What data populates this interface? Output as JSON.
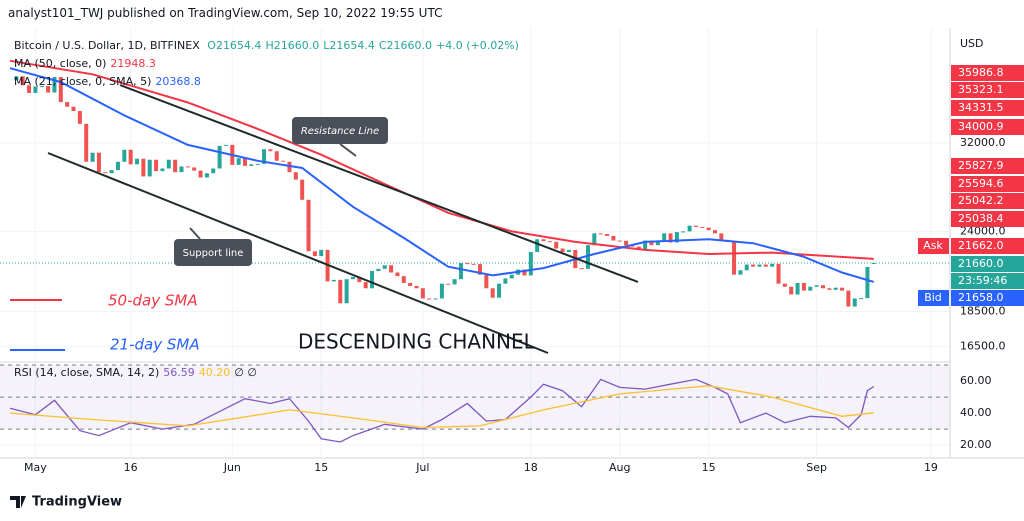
{
  "header": {
    "publisher": "analyst101_TWJ published on TradingView.com, Sep 10, 2022 19:55 UTC",
    "footer": "TradingView"
  },
  "chart_data": [
    {
      "type": "candlestick",
      "title": "Bitcoin / U.S. Dollar, 1D, BITFINEX",
      "quote": [
        "O21654.4",
        "H21660.0",
        "L21654.4",
        "C21660.0",
        "+4.0 (+0.02%)"
      ],
      "currency": "USD",
      "x": [
        "2022-04-28",
        "2022-04-29",
        "2022-04-30",
        "2022-05-01",
        "2022-05-02",
        "2022-05-03",
        "2022-05-04",
        "2022-05-05",
        "2022-05-06",
        "2022-05-07",
        "2022-05-08",
        "2022-05-09",
        "2022-05-10",
        "2022-05-11",
        "2022-05-12",
        "2022-05-13",
        "2022-05-14",
        "2022-05-15",
        "2022-05-16",
        "2022-05-17",
        "2022-05-18",
        "2022-05-19",
        "2022-05-20",
        "2022-05-21",
        "2022-05-22",
        "2022-05-23",
        "2022-05-24",
        "2022-05-25",
        "2022-05-26",
        "2022-05-27",
        "2022-05-28",
        "2022-05-29",
        "2022-05-30",
        "2022-05-31",
        "2022-06-01",
        "2022-06-02",
        "2022-06-03",
        "2022-06-04",
        "2022-06-05",
        "2022-06-06",
        "2022-06-07",
        "2022-06-08",
        "2022-06-09",
        "2022-06-10",
        "2022-06-11",
        "2022-06-12",
        "2022-06-13",
        "2022-06-14",
        "2022-06-15",
        "2022-06-16",
        "2022-06-17",
        "2022-06-18",
        "2022-06-19",
        "2022-06-20",
        "2022-06-21",
        "2022-06-22",
        "2022-06-23",
        "2022-06-24",
        "2022-06-25",
        "2022-06-26",
        "2022-06-27",
        "2022-06-28",
        "2022-06-29",
        "2022-06-30",
        "2022-07-01",
        "2022-07-02",
        "2022-07-03",
        "2022-07-04",
        "2022-07-05",
        "2022-07-06",
        "2022-07-07",
        "2022-07-08",
        "2022-07-09",
        "2022-07-10",
        "2022-07-11",
        "2022-07-12",
        "2022-07-13",
        "2022-07-14",
        "2022-07-15",
        "2022-07-16",
        "2022-07-17",
        "2022-07-18",
        "2022-07-19",
        "2022-07-20",
        "2022-07-21",
        "2022-07-22",
        "2022-07-23",
        "2022-07-24",
        "2022-07-25",
        "2022-07-26",
        "2022-07-27",
        "2022-07-28",
        "2022-07-29",
        "2022-07-30",
        "2022-07-31",
        "2022-08-01",
        "2022-08-02",
        "2022-08-03",
        "2022-08-04",
        "2022-08-05",
        "2022-08-06",
        "2022-08-07",
        "2022-08-08",
        "2022-08-09",
        "2022-08-10",
        "2022-08-11",
        "2022-08-12",
        "2022-08-13",
        "2022-08-14",
        "2022-08-15",
        "2022-08-16",
        "2022-08-17",
        "2022-08-18",
        "2022-08-19",
        "2022-08-20",
        "2022-08-21",
        "2022-08-22",
        "2022-08-23",
        "2022-08-24",
        "2022-08-25",
        "2022-08-26",
        "2022-08-27",
        "2022-08-28",
        "2022-08-29",
        "2022-08-30",
        "2022-08-31",
        "2022-09-01",
        "2022-09-02",
        "2022-09-03",
        "2022-09-04",
        "2022-09-05",
        "2022-09-06",
        "2022-09-07",
        "2022-09-08",
        "2022-09-09",
        "2022-09-10"
      ],
      "open": [
        39250,
        39750,
        38600,
        37650,
        38450,
        38500,
        37700,
        39650,
        36550,
        36000,
        35500,
        34050,
        30100,
        31000,
        29100,
        29000,
        29300,
        30100,
        31300,
        29850,
        30400,
        28700,
        30300,
        29200,
        29450,
        30300,
        29100,
        29650,
        29550,
        29250,
        28600,
        29000,
        29450,
        31700,
        31800,
        29800,
        30450,
        29700,
        29850,
        29900,
        31350,
        31150,
        30200,
        30100,
        29100,
        28400,
        26600,
        22500,
        22150,
        22600,
        20400,
        20500,
        19000,
        20550,
        20700,
        20350,
        19950,
        21100,
        21250,
        21500,
        21000,
        20750,
        20300,
        20100,
        19950,
        19300,
        19250,
        19300,
        20250,
        20200,
        20550,
        21650,
        21600,
        21580,
        20850,
        19950,
        19350,
        20250,
        20600,
        20850,
        21200,
        20800,
        22450,
        23400,
        23250,
        23200,
        22700,
        22450,
        22600,
        21300,
        21250,
        22950,
        23850,
        23800,
        23650,
        23300,
        23280,
        22950,
        22850,
        22650,
        23300,
        22950,
        23200,
        23850,
        23150,
        23950,
        24000,
        24450,
        24350,
        24300,
        24100,
        23850,
        23350,
        23200,
        20850,
        21150,
        21550,
        21400,
        21550,
        21400,
        21600,
        20250,
        20050,
        19550,
        20300,
        19800,
        20050,
        20150,
        19950,
        19850,
        19990,
        19800,
        18800,
        19300,
        19320,
        21654.4
      ],
      "close": [
        39750,
        38600,
        37650,
        38450,
        38500,
        37700,
        39650,
        36550,
        36000,
        35500,
        34050,
        30100,
        31000,
        29100,
        29000,
        29300,
        30100,
        31300,
        29850,
        30400,
        28700,
        30300,
        29200,
        29450,
        30300,
        29100,
        29650,
        29550,
        29250,
        28600,
        29000,
        29450,
        31700,
        31800,
        29800,
        30450,
        29700,
        29850,
        29900,
        31350,
        31150,
        30200,
        30100,
        29100,
        28400,
        26600,
        22500,
        22150,
        22600,
        20400,
        20500,
        19000,
        20550,
        20700,
        20350,
        19950,
        21100,
        21250,
        21500,
        21000,
        20750,
        20300,
        20100,
        19950,
        19300,
        19250,
        19300,
        20250,
        20200,
        20550,
        21650,
        21600,
        21580,
        20850,
        19950,
        19350,
        20250,
        20600,
        20850,
        21200,
        20800,
        22450,
        23400,
        23250,
        23200,
        22700,
        22450,
        22600,
        21300,
        21250,
        22950,
        23850,
        23800,
        23650,
        23300,
        23280,
        22950,
        22850,
        22650,
        23300,
        22950,
        23200,
        23850,
        23150,
        23950,
        24000,
        24450,
        24350,
        24300,
        24100,
        23850,
        23350,
        23200,
        20850,
        21150,
        21550,
        21400,
        21550,
        21400,
        21600,
        20250,
        20050,
        19550,
        20300,
        19800,
        20050,
        20150,
        19950,
        19850,
        19990,
        19800,
        18800,
        19300,
        19320,
        21380,
        21660
      ],
      "up_color": "#26a69a",
      "down_color": "#ef5350",
      "lines": [
        {
          "name": "MA (50, close, 0)",
          "legend_value": "21948.3",
          "color": "#f23645",
          "x": [
            "2022-04-27",
            "2022-05-10",
            "2022-05-25",
            "2022-06-05",
            "2022-06-15",
            "2022-06-25",
            "2022-07-05",
            "2022-07-15",
            "2022-07-25",
            "2022-08-05",
            "2022-08-15",
            "2022-08-25",
            "2022-09-10"
          ],
          "values": [
            41800,
            40000,
            36500,
            33500,
            30800,
            28000,
            25500,
            24000,
            23200,
            22600,
            22300,
            22400,
            21948.3
          ]
        },
        {
          "name": "MA (21, close, 0, SMA, 5)",
          "legend_value": "20368.8",
          "color": "#2962ff",
          "x": [
            "2022-04-27",
            "2022-05-05",
            "2022-05-15",
            "2022-05-25",
            "2022-06-05",
            "2022-06-12",
            "2022-06-20",
            "2022-06-28",
            "2022-07-05",
            "2022-07-12",
            "2022-07-20",
            "2022-07-28",
            "2022-08-05",
            "2022-08-15",
            "2022-08-22",
            "2022-08-30",
            "2022-09-05",
            "2022-09-10"
          ],
          "values": [
            40800,
            39000,
            35000,
            31800,
            30200,
            29500,
            26000,
            23500,
            21400,
            20800,
            21300,
            22300,
            23200,
            23400,
            23100,
            22100,
            21000,
            20368.8
          ]
        }
      ],
      "log_scale": true,
      "xlim": [
        "2022-04-27",
        "2022-09-22"
      ],
      "ylim": [
        15800,
        46200
      ],
      "xticks": [
        {
          "value": "2022-05-01",
          "label": "May"
        },
        {
          "value": "2022-05-16",
          "label": "16"
        },
        {
          "value": "2022-06-01",
          "label": "Jun"
        },
        {
          "value": "2022-06-15",
          "label": "15"
        },
        {
          "value": "2022-07-01",
          "label": "Jul"
        },
        {
          "value": "2022-07-18",
          "label": "18"
        },
        {
          "value": "2022-08-01",
          "label": "Aug"
        },
        {
          "value": "2022-08-15",
          "label": "15"
        },
        {
          "value": "2022-09-01",
          "label": "Sep"
        },
        {
          "value": "2022-09-19",
          "label": "19"
        }
      ],
      "yticks": [
        {
          "value": 32000,
          "label": "32000.0"
        },
        {
          "value": 24000,
          "label": "24000.0"
        },
        {
          "value": 18500,
          "label": "18500.0"
        },
        {
          "value": 16500,
          "label": "16500.0"
        }
      ],
      "price_markers": [
        {
          "value": 35986.8,
          "color": "#f23645"
        },
        {
          "value": 35323.1,
          "color": "#f23645"
        },
        {
          "value": 34331.5,
          "color": "#f23645"
        },
        {
          "value": 34000.9,
          "color": "#f23645"
        },
        {
          "value": 25827.9,
          "color": "#f23645"
        },
        {
          "value": 25594.6,
          "color": "#f23645"
        },
        {
          "value": 25042.2,
          "color": "#f23645"
        },
        {
          "value": 25038.4,
          "color": "#f23645"
        },
        {
          "value": 21662,
          "label": "21662.0",
          "color": "#f23645",
          "tag": "Ask"
        },
        {
          "value": 21660,
          "label": "21660.0",
          "color": "#26a69a",
          "timer": "23:59:46"
        },
        {
          "value": 21658,
          "label": "21658.0",
          "color": "#2962ff",
          "tag": "Bid"
        }
      ],
      "annotations": [
        "Resistance Line",
        "Support line",
        "50-day SMA",
        "21-day SMA",
        "DESCENDING CHANNEL"
      ],
      "grid": true
    },
    {
      "type": "line",
      "title": "RSI (14, close, SMA, 14, 2)",
      "legend_values": [
        "56.59",
        "40.20",
        "∅ ∅"
      ],
      "series": [
        {
          "color": "#7e57c2",
          "x": [
            "2022-04-27",
            "2022-05-01",
            "2022-05-04",
            "2022-05-08",
            "2022-05-11",
            "2022-05-16",
            "2022-05-21",
            "2022-05-26",
            "2022-05-31",
            "2022-06-03",
            "2022-06-07",
            "2022-06-10",
            "2022-06-13",
            "2022-06-15",
            "2022-06-18",
            "2022-06-20",
            "2022-06-25",
            "2022-07-01",
            "2022-07-04",
            "2022-07-08",
            "2022-07-11",
            "2022-07-14",
            "2022-07-18",
            "2022-07-20",
            "2022-07-23",
            "2022-07-26",
            "2022-07-29",
            "2022-08-01",
            "2022-08-05",
            "2022-08-09",
            "2022-08-13",
            "2022-08-16",
            "2022-08-18",
            "2022-08-20",
            "2022-08-24",
            "2022-08-27",
            "2022-08-31",
            "2022-09-04",
            "2022-09-06",
            "2022-09-08",
            "2022-09-09",
            "2022-09-10"
          ],
          "values": [
            43,
            39,
            48,
            29,
            26,
            34,
            30,
            33,
            43,
            49,
            46,
            49,
            35,
            24,
            22,
            26,
            33,
            30,
            36,
            46,
            35,
            36,
            50,
            58,
            54,
            44,
            61,
            56,
            55,
            58,
            61,
            56,
            52,
            34,
            40,
            34,
            38,
            37,
            31,
            39,
            54,
            56.59
          ]
        },
        {
          "color": "#fbc02d",
          "x": [
            "2022-04-27",
            "2022-05-10",
            "2022-05-25",
            "2022-06-10",
            "2022-06-20",
            "2022-07-01",
            "2022-07-10",
            "2022-07-20",
            "2022-08-01",
            "2022-08-15",
            "2022-08-25",
            "2022-09-05",
            "2022-09-10"
          ],
          "values": [
            40,
            36,
            32,
            42,
            37,
            31,
            32,
            42,
            52,
            57,
            50,
            38,
            40.2
          ]
        }
      ],
      "xlim": [
        "2022-04-27",
        "2022-09-22"
      ],
      "ylim": [
        12,
        70
      ],
      "yticks": [
        {
          "value": 60,
          "label": "60.00"
        },
        {
          "value": 40,
          "label": "40.00"
        },
        {
          "value": 20,
          "label": "20.00"
        }
      ],
      "levels": [
        30,
        50,
        70
      ],
      "band_color": "#7e57c2"
    }
  ]
}
